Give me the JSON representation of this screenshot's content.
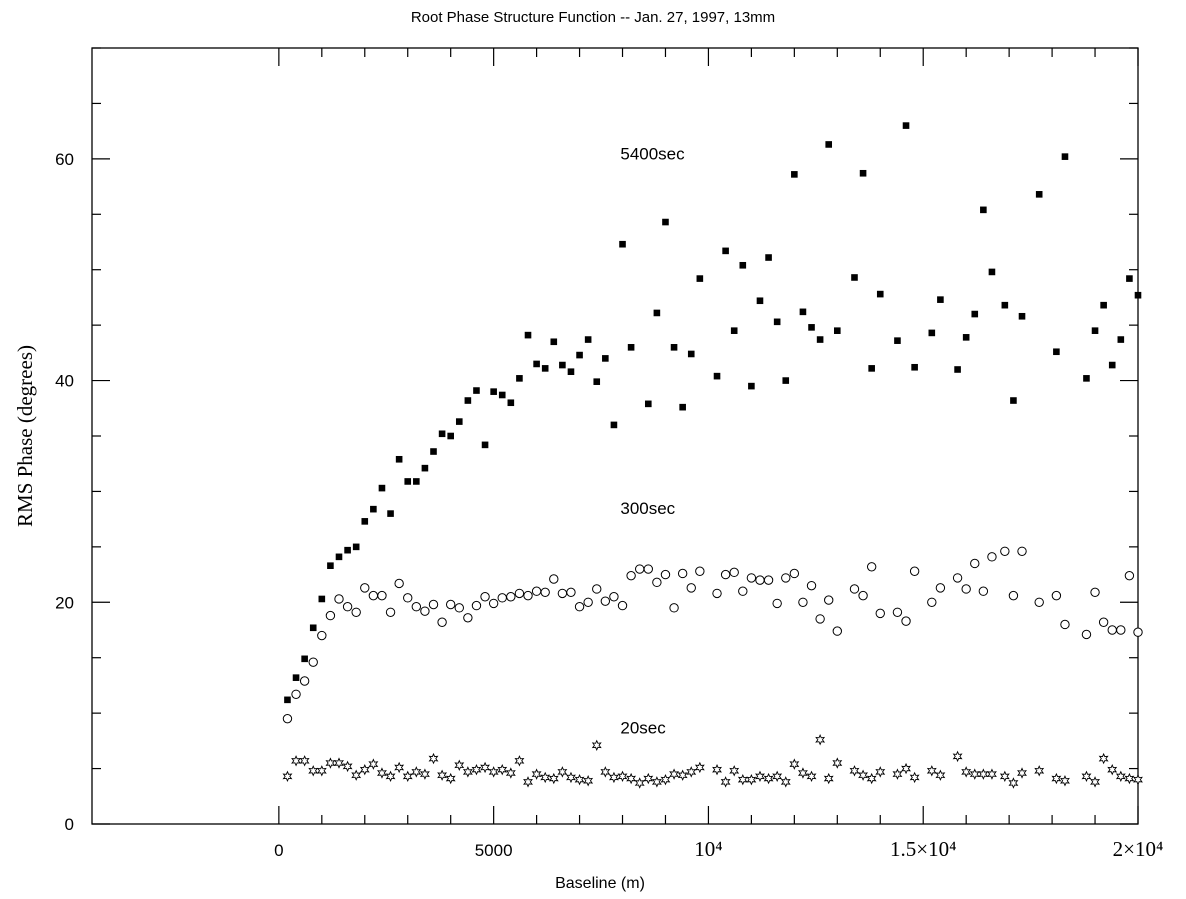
{
  "chart_data": {
    "type": "scatter",
    "title": "Root Phase Structure Function -- Jan. 27, 1997, 13mm",
    "xlabel": "Baseline (m)",
    "ylabel": "RMS Phase (degrees)",
    "xlim": [
      -4350,
      20000
    ],
    "ylim": [
      0,
      70
    ],
    "x_ticks": [
      {
        "value": 0,
        "label": "0"
      },
      {
        "value": 5000,
        "label": "5000"
      },
      {
        "value": 10000,
        "label": "10⁴"
      },
      {
        "value": 15000,
        "label": "1.5×10⁴"
      },
      {
        "value": 20000,
        "label": "2×10⁴"
      }
    ],
    "y_ticks": [
      {
        "value": 0,
        "label": "0"
      },
      {
        "value": 20,
        "label": "20"
      },
      {
        "value": 40,
        "label": "40"
      },
      {
        "value": 60,
        "label": "60"
      }
    ],
    "series": [
      {
        "name": "5400sec",
        "marker": "filled-square",
        "label_at": [
          7950,
          60.5
        ],
        "points": [
          [
            200,
            11.2
          ],
          [
            400,
            13.2
          ],
          [
            600,
            14.9
          ],
          [
            800,
            17.7
          ],
          [
            1000,
            20.3
          ],
          [
            1200,
            23.3
          ],
          [
            1400,
            24.1
          ],
          [
            1600,
            24.7
          ],
          [
            1800,
            25.0
          ],
          [
            2000,
            27.3
          ],
          [
            2200,
            28.4
          ],
          [
            2400,
            30.3
          ],
          [
            2600,
            28.0
          ],
          [
            2800,
            32.9
          ],
          [
            3000,
            30.9
          ],
          [
            3200,
            30.9
          ],
          [
            3400,
            32.1
          ],
          [
            3600,
            33.6
          ],
          [
            3800,
            35.2
          ],
          [
            4000,
            35.0
          ],
          [
            4200,
            36.3
          ],
          [
            4400,
            38.2
          ],
          [
            4600,
            39.1
          ],
          [
            4800,
            34.2
          ],
          [
            5000,
            39.0
          ],
          [
            5200,
            38.7
          ],
          [
            5400,
            38.0
          ],
          [
            5600,
            40.2
          ],
          [
            5800,
            44.1
          ],
          [
            6000,
            41.5
          ],
          [
            6200,
            41.1
          ],
          [
            6400,
            43.5
          ],
          [
            6600,
            41.4
          ],
          [
            6800,
            40.8
          ],
          [
            7000,
            42.3
          ],
          [
            7200,
            43.7
          ],
          [
            7400,
            39.9
          ],
          [
            7600,
            42.0
          ],
          [
            7800,
            36.0
          ],
          [
            8000,
            52.3
          ],
          [
            8200,
            43.0
          ],
          [
            8600,
            37.9
          ],
          [
            8800,
            46.1
          ],
          [
            9000,
            54.3
          ],
          [
            9200,
            43.0
          ],
          [
            9400,
            37.6
          ],
          [
            9600,
            42.4
          ],
          [
            9800,
            49.2
          ],
          [
            10200,
            40.4
          ],
          [
            10400,
            51.7
          ],
          [
            10600,
            44.5
          ],
          [
            10800,
            50.4
          ],
          [
            11000,
            39.5
          ],
          [
            11200,
            47.2
          ],
          [
            11400,
            51.1
          ],
          [
            11600,
            45.3
          ],
          [
            11800,
            40.0
          ],
          [
            12000,
            58.6
          ],
          [
            12200,
            46.2
          ],
          [
            12400,
            44.8
          ],
          [
            12600,
            43.7
          ],
          [
            12800,
            61.3
          ],
          [
            13000,
            44.5
          ],
          [
            13400,
            49.3
          ],
          [
            13600,
            58.7
          ],
          [
            13800,
            41.1
          ],
          [
            14000,
            47.8
          ],
          [
            14400,
            43.6
          ],
          [
            14600,
            63.0
          ],
          [
            14800,
            41.2
          ],
          [
            15200,
            44.3
          ],
          [
            15400,
            47.3
          ],
          [
            15800,
            41.0
          ],
          [
            16000,
            43.9
          ],
          [
            16200,
            46.0
          ],
          [
            16400,
            55.4
          ],
          [
            16600,
            49.8
          ],
          [
            16900,
            46.8
          ],
          [
            17100,
            38.2
          ],
          [
            17300,
            45.8
          ],
          [
            17700,
            56.8
          ],
          [
            18100,
            42.6
          ],
          [
            18300,
            60.2
          ],
          [
            18800,
            40.2
          ],
          [
            19000,
            44.5
          ],
          [
            19200,
            46.8
          ],
          [
            19400,
            41.4
          ],
          [
            19600,
            43.7
          ],
          [
            19800,
            49.2
          ],
          [
            20000,
            47.7
          ]
        ]
      },
      {
        "name": "300sec",
        "marker": "open-circle",
        "label_at": [
          7950,
          28.5
        ],
        "points": [
          [
            200,
            9.5
          ],
          [
            400,
            11.7
          ],
          [
            600,
            12.9
          ],
          [
            800,
            14.6
          ],
          [
            1000,
            17.0
          ],
          [
            1200,
            18.8
          ],
          [
            1400,
            20.3
          ],
          [
            1600,
            19.6
          ],
          [
            1800,
            19.1
          ],
          [
            2000,
            21.3
          ],
          [
            2200,
            20.6
          ],
          [
            2400,
            20.6
          ],
          [
            2600,
            19.1
          ],
          [
            2800,
            21.7
          ],
          [
            3000,
            20.4
          ],
          [
            3200,
            19.6
          ],
          [
            3400,
            19.2
          ],
          [
            3600,
            19.8
          ],
          [
            3800,
            18.2
          ],
          [
            4000,
            19.8
          ],
          [
            4200,
            19.5
          ],
          [
            4400,
            18.6
          ],
          [
            4600,
            19.7
          ],
          [
            4800,
            20.5
          ],
          [
            5000,
            19.9
          ],
          [
            5200,
            20.4
          ],
          [
            5400,
            20.5
          ],
          [
            5600,
            20.8
          ],
          [
            5800,
            20.6
          ],
          [
            6000,
            21.0
          ],
          [
            6200,
            20.9
          ],
          [
            6400,
            22.1
          ],
          [
            6600,
            20.8
          ],
          [
            6800,
            20.9
          ],
          [
            7000,
            19.6
          ],
          [
            7200,
            20.0
          ],
          [
            7400,
            21.2
          ],
          [
            7600,
            20.1
          ],
          [
            7800,
            20.5
          ],
          [
            8000,
            19.7
          ],
          [
            8200,
            22.4
          ],
          [
            8400,
            23.0
          ],
          [
            8600,
            23.0
          ],
          [
            8800,
            21.8
          ],
          [
            9000,
            22.5
          ],
          [
            9200,
            19.5
          ],
          [
            9400,
            22.6
          ],
          [
            9600,
            21.3
          ],
          [
            9800,
            22.8
          ],
          [
            10200,
            20.8
          ],
          [
            10400,
            22.5
          ],
          [
            10600,
            22.7
          ],
          [
            10800,
            21.0
          ],
          [
            11000,
            22.2
          ],
          [
            11200,
            22.0
          ],
          [
            11400,
            22.0
          ],
          [
            11600,
            19.9
          ],
          [
            11800,
            22.2
          ],
          [
            12000,
            22.6
          ],
          [
            12200,
            20.0
          ],
          [
            12400,
            21.5
          ],
          [
            12600,
            18.5
          ],
          [
            12800,
            20.2
          ],
          [
            13000,
            17.4
          ],
          [
            13400,
            21.2
          ],
          [
            13600,
            20.6
          ],
          [
            13800,
            23.2
          ],
          [
            14000,
            19.0
          ],
          [
            14400,
            19.1
          ],
          [
            14600,
            18.3
          ],
          [
            14800,
            22.8
          ],
          [
            15200,
            20.0
          ],
          [
            15400,
            21.3
          ],
          [
            15800,
            22.2
          ],
          [
            16000,
            21.2
          ],
          [
            16200,
            23.5
          ],
          [
            16400,
            21.0
          ],
          [
            16600,
            24.1
          ],
          [
            16900,
            24.6
          ],
          [
            17100,
            20.6
          ],
          [
            17300,
            24.6
          ],
          [
            17700,
            20.0
          ],
          [
            18100,
            20.6
          ],
          [
            18300,
            18.0
          ],
          [
            18800,
            17.1
          ],
          [
            19000,
            20.9
          ],
          [
            19200,
            18.2
          ],
          [
            19400,
            17.5
          ],
          [
            19600,
            17.5
          ],
          [
            19800,
            22.4
          ],
          [
            20000,
            17.3
          ]
        ]
      },
      {
        "name": "20sec",
        "marker": "star",
        "label_at": [
          7950,
          8.7
        ],
        "points": [
          [
            200,
            4.3
          ],
          [
            400,
            5.7
          ],
          [
            600,
            5.7
          ],
          [
            800,
            4.8
          ],
          [
            1000,
            4.8
          ],
          [
            1200,
            5.5
          ],
          [
            1400,
            5.5
          ],
          [
            1600,
            5.2
          ],
          [
            1800,
            4.4
          ],
          [
            2000,
            4.9
          ],
          [
            2200,
            5.4
          ],
          [
            2400,
            4.6
          ],
          [
            2600,
            4.3
          ],
          [
            2800,
            5.1
          ],
          [
            3000,
            4.3
          ],
          [
            3200,
            4.7
          ],
          [
            3400,
            4.5
          ],
          [
            3600,
            5.9
          ],
          [
            3800,
            4.4
          ],
          [
            4000,
            4.1
          ],
          [
            4200,
            5.3
          ],
          [
            4400,
            4.7
          ],
          [
            4600,
            4.9
          ],
          [
            4800,
            5.1
          ],
          [
            5000,
            4.7
          ],
          [
            5200,
            4.9
          ],
          [
            5400,
            4.6
          ],
          [
            5600,
            5.7
          ],
          [
            5800,
            3.8
          ],
          [
            6000,
            4.5
          ],
          [
            6200,
            4.2
          ],
          [
            6400,
            4.1
          ],
          [
            6600,
            4.7
          ],
          [
            6800,
            4.2
          ],
          [
            7000,
            4.0
          ],
          [
            7200,
            3.9
          ],
          [
            7400,
            7.1
          ],
          [
            7600,
            4.7
          ],
          [
            7800,
            4.2
          ],
          [
            8000,
            4.3
          ],
          [
            8200,
            4.1
          ],
          [
            8400,
            3.7
          ],
          [
            8600,
            4.1
          ],
          [
            8800,
            3.8
          ],
          [
            9000,
            4.0
          ],
          [
            9200,
            4.5
          ],
          [
            9400,
            4.4
          ],
          [
            9600,
            4.7
          ],
          [
            9800,
            5.1
          ],
          [
            10200,
            4.9
          ],
          [
            10400,
            3.8
          ],
          [
            10600,
            4.8
          ],
          [
            10800,
            4.0
          ],
          [
            11000,
            4.0
          ],
          [
            11200,
            4.3
          ],
          [
            11400,
            4.1
          ],
          [
            11600,
            4.3
          ],
          [
            11800,
            3.8
          ],
          [
            12000,
            5.4
          ],
          [
            12200,
            4.6
          ],
          [
            12400,
            4.3
          ],
          [
            12600,
            7.6
          ],
          [
            12800,
            4.1
          ],
          [
            13000,
            5.5
          ],
          [
            13400,
            4.8
          ],
          [
            13600,
            4.4
          ],
          [
            13800,
            4.1
          ],
          [
            14000,
            4.7
          ],
          [
            14400,
            4.5
          ],
          [
            14600,
            5.0
          ],
          [
            14800,
            4.2
          ],
          [
            15200,
            4.8
          ],
          [
            15400,
            4.4
          ],
          [
            15800,
            6.1
          ],
          [
            16000,
            4.7
          ],
          [
            16200,
            4.5
          ],
          [
            16400,
            4.5
          ],
          [
            16600,
            4.5
          ],
          [
            16900,
            4.3
          ],
          [
            17100,
            3.7
          ],
          [
            17300,
            4.6
          ],
          [
            17700,
            4.8
          ],
          [
            18100,
            4.1
          ],
          [
            18300,
            3.9
          ],
          [
            18800,
            4.3
          ],
          [
            19000,
            3.8
          ],
          [
            19200,
            5.9
          ],
          [
            19400,
            4.9
          ],
          [
            19600,
            4.3
          ],
          [
            19800,
            4.1
          ],
          [
            20000,
            4.0
          ]
        ]
      }
    ]
  }
}
